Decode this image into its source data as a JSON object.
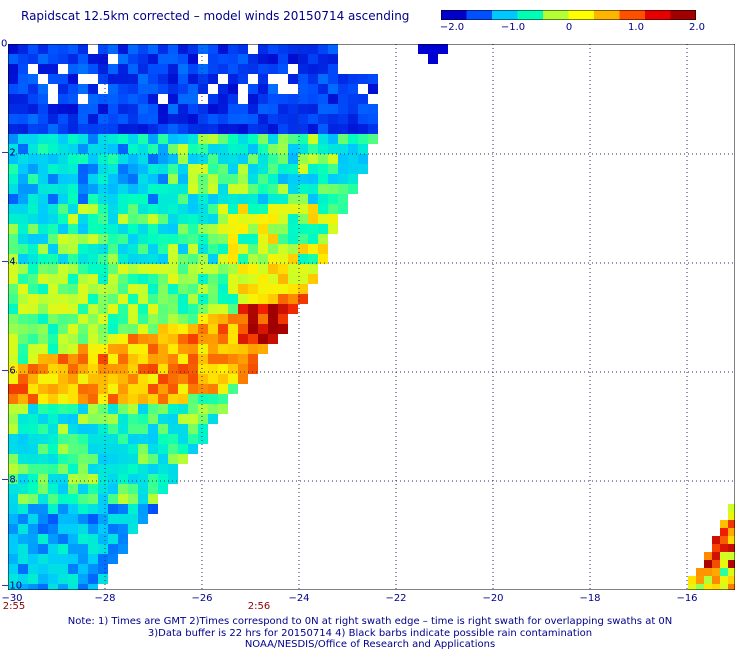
{
  "title": "Rapidscat 12.5km corrected – model winds 20150714 ascending",
  "colorbar": {
    "labels": [
      "−2.0",
      "−1.0",
      "0",
      "1.0",
      "2.0"
    ],
    "range": [
      -2.0,
      2.0
    ],
    "colors": [
      "#0000c8",
      "#0050ff",
      "#00c8ff",
      "#00ffb4",
      "#b4ff32",
      "#ffff00",
      "#ffb400",
      "#ff5000",
      "#e60000",
      "#a00000"
    ]
  },
  "axes": {
    "x_labels": [
      "−28",
      "−26",
      "−24",
      "−22",
      "−20",
      "−18",
      "−16"
    ],
    "y_labels": [
      "0",
      "−2",
      "−4",
      "−6",
      "−8",
      "−10"
    ],
    "x_first": "−30",
    "lon_range": [
      -30,
      -15
    ],
    "lat_range": [
      0,
      -10
    ],
    "grid": "dotted"
  },
  "times": [
    "2:55",
    "2:56"
  ],
  "notes": [
    "Note: 1) Times are GMT 2)Times correspond to 0N at right swath edge – time is right swath for overlapping swaths at 0N",
    "3)Data buffer is 22 hrs for 20150714 4) Black barbs indicate possible rain contamination",
    "NOAA/NESDIS/Office of Research and Applications"
  ]
}
